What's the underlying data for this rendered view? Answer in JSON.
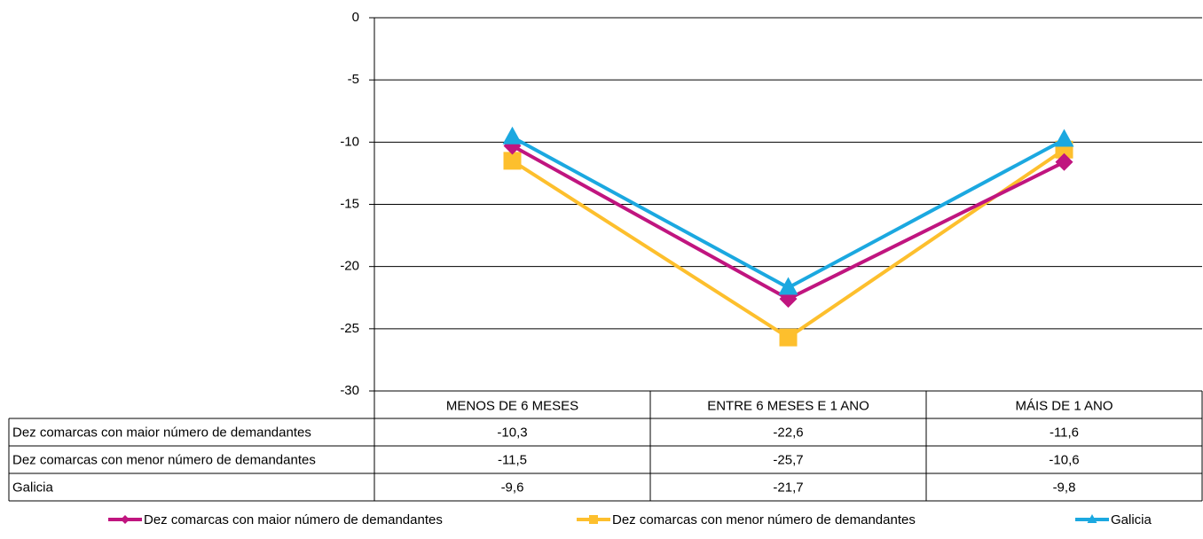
{
  "chart_data": {
    "type": "line",
    "categories": [
      "MENOS DE 6 MESES",
      "ENTRE 6 MESES E 1 ANO",
      "MÁIS DE 1 ANO"
    ],
    "series": [
      {
        "name": "Dez comarcas con maior número de demandantes",
        "color": "#c0157f",
        "marker": "diamond",
        "values": [
          -10.3,
          -22.6,
          -11.6
        ],
        "value_labels": [
          "-10,3",
          "-22,6",
          "-11,6"
        ]
      },
      {
        "name": "Dez comarcas con menor número de demandantes",
        "color": "#fdbf2d",
        "marker": "square",
        "values": [
          -11.5,
          -25.7,
          -10.6
        ],
        "value_labels": [
          "-11,5",
          "-25,7",
          "-10,6"
        ]
      },
      {
        "name": "Galicia",
        "color": "#1ba8e0",
        "marker": "triangle",
        "values": [
          -9.6,
          -21.7,
          -9.8
        ],
        "value_labels": [
          "-9,6",
          "-21,7",
          "-9,8"
        ]
      }
    ],
    "ylim": [
      -30,
      0
    ],
    "yticks": [
      0,
      -5,
      -10,
      -15,
      -20,
      -25,
      -30
    ],
    "grid": true,
    "legend": "bottom"
  }
}
